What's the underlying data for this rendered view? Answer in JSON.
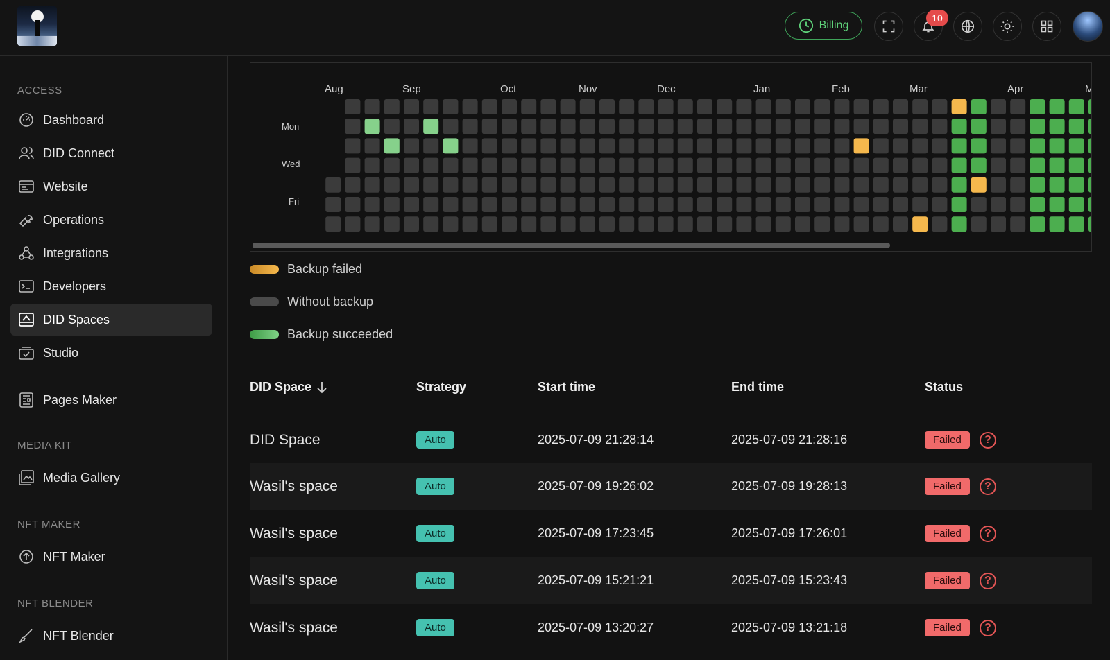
{
  "header": {
    "billing_label": "Billing",
    "notification_count": "10",
    "icons": [
      "fullscreen-icon",
      "bell-icon",
      "globe-icon",
      "sun-icon",
      "grid-icon"
    ]
  },
  "sidebar": {
    "sections": [
      {
        "title": "ACCESS",
        "items": [
          "Dashboard",
          "DID Connect",
          "Website",
          "Operations",
          "Integrations",
          "Developers",
          "DID Spaces",
          "Studio",
          "Pages Maker"
        ]
      },
      {
        "title": "MEDIA KIT",
        "items": [
          "Media Gallery"
        ]
      },
      {
        "title": "NFT MAKER",
        "items": [
          "NFT Maker"
        ]
      },
      {
        "title": "NFT BLENDER",
        "items": [
          "NFT Blender"
        ]
      }
    ],
    "active_item": "DID Spaces"
  },
  "heatmap": {
    "months": [
      "Aug",
      "Sep",
      "Oct",
      "Nov",
      "Dec",
      "Jan",
      "Feb",
      "Mar",
      "Apr",
      "M"
    ],
    "weekday_labels": [
      "Mon",
      "Wed",
      "Fri"
    ],
    "colors": {
      "failed": "#f5b84d",
      "none": "#3b3b3b",
      "success": "#4cae4f",
      "success_light": "#86d18b"
    }
  },
  "legend": {
    "failed": "Backup failed",
    "none": "Without backup",
    "success": "Backup succeeded"
  },
  "table": {
    "headers": {
      "space": "DID Space",
      "strategy": "Strategy",
      "start": "Start time",
      "end": "End time",
      "status": "Status"
    },
    "rows": [
      {
        "space": "DID Space",
        "strategy": "Auto",
        "start": "2025-07-09 21:28:14",
        "end": "2025-07-09 21:28:16",
        "status": "Failed"
      },
      {
        "space": "Wasil's space",
        "strategy": "Auto",
        "start": "2025-07-09 19:26:02",
        "end": "2025-07-09 19:28:13",
        "status": "Failed"
      },
      {
        "space": "Wasil's space",
        "strategy": "Auto",
        "start": "2025-07-09 17:23:45",
        "end": "2025-07-09 17:26:01",
        "status": "Failed"
      },
      {
        "space": "Wasil's space",
        "strategy": "Auto",
        "start": "2025-07-09 15:21:21",
        "end": "2025-07-09 15:23:43",
        "status": "Failed"
      },
      {
        "space": "Wasil's space",
        "strategy": "Auto",
        "start": "2025-07-09 13:20:27",
        "end": "2025-07-09 13:21:18",
        "status": "Failed"
      }
    ]
  }
}
